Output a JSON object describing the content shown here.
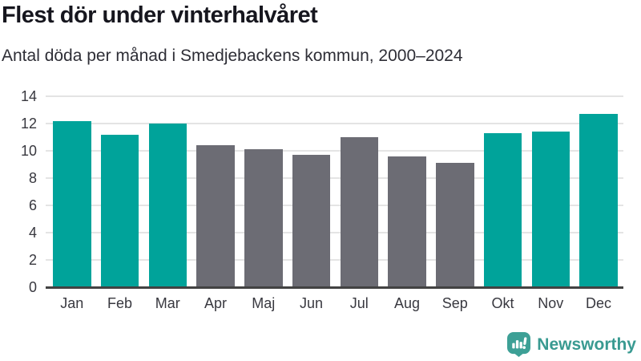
{
  "chart_data": {
    "type": "bar",
    "title": "Flest dör under vinterhalvåret",
    "subtitle": "Antal döda per månad i Smedjebackens kommun, 2000–2024",
    "categories": [
      "Jan",
      "Feb",
      "Mar",
      "Apr",
      "Maj",
      "Jun",
      "Jul",
      "Aug",
      "Sep",
      "Okt",
      "Nov",
      "Dec"
    ],
    "values": [
      12.2,
      11.2,
      12.0,
      10.4,
      10.1,
      9.7,
      11.0,
      9.6,
      9.1,
      11.3,
      11.4,
      12.7
    ],
    "season_key": [
      "winter",
      "winter",
      "winter",
      "summer",
      "summer",
      "summer",
      "summer",
      "summer",
      "summer",
      "winter",
      "winter",
      "winter"
    ],
    "colors": {
      "winter": "#00a39a",
      "summer": "#6c6c74"
    },
    "ylim": [
      0,
      14
    ],
    "yticks": [
      0,
      2,
      4,
      6,
      8,
      10,
      12,
      14
    ],
    "grid": true,
    "legend": "none",
    "xlabel": "",
    "ylabel": ""
  },
  "footer": {
    "brand": "Newsworthy",
    "brand_color": "#3da096"
  }
}
